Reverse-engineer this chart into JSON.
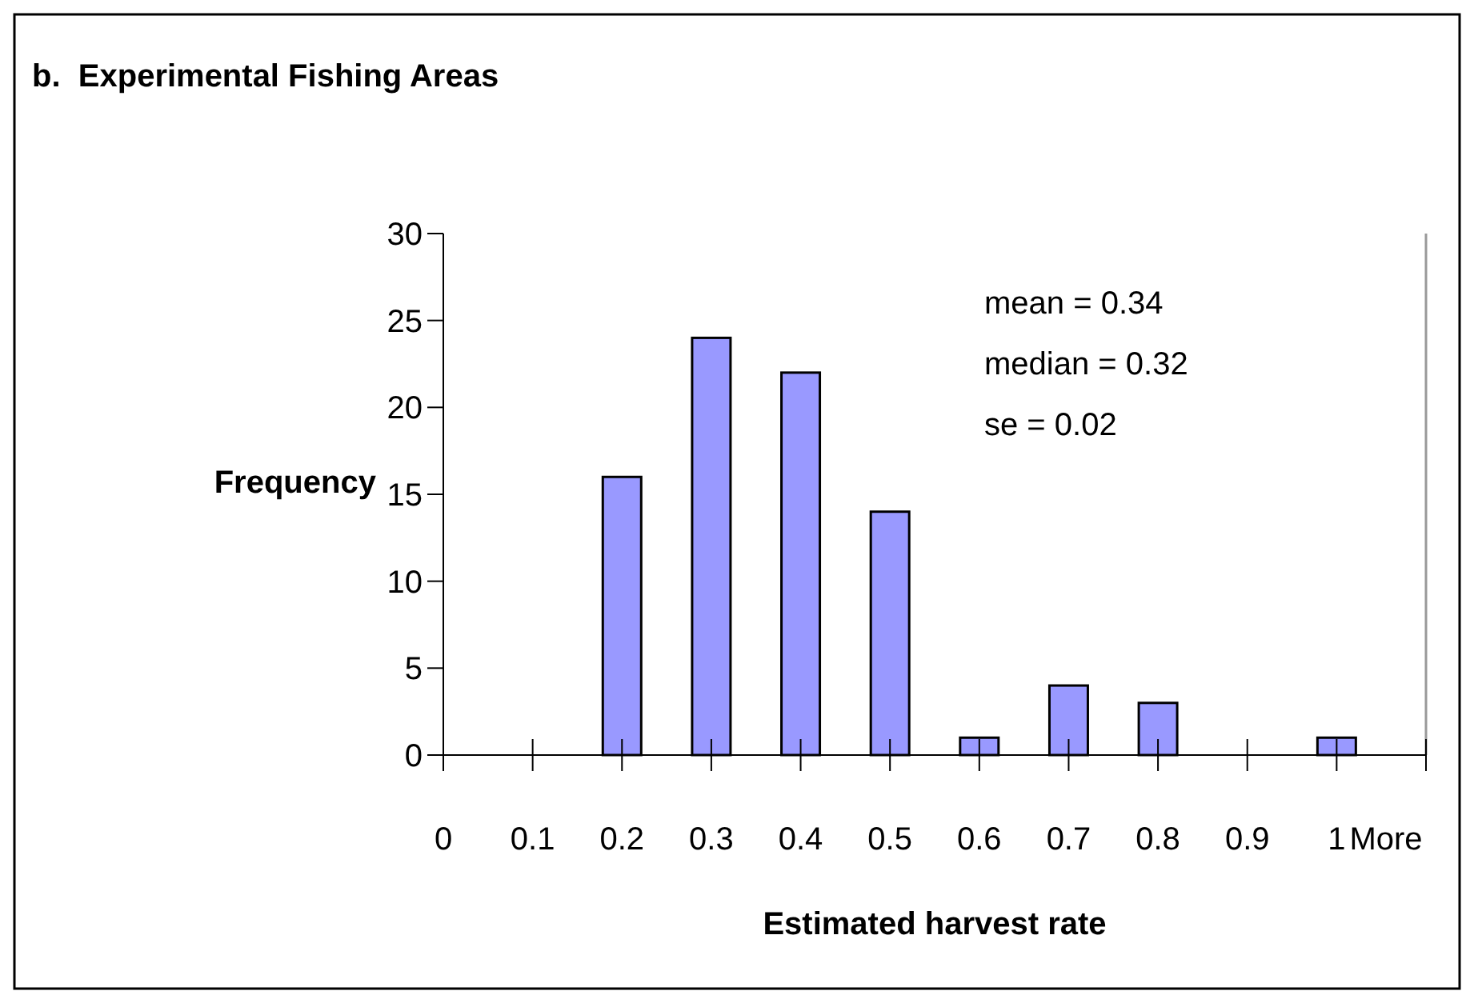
{
  "chart_data": {
    "type": "bar",
    "title": "b.  Experimental Fishing Areas",
    "xlabel": "Estimated harvest rate",
    "ylabel": "Frequency",
    "categories": [
      "0",
      "0.1",
      "0.2",
      "0.3",
      "0.4",
      "0.5",
      "0.6",
      "0.7",
      "0.8",
      "0.9",
      "1",
      "More"
    ],
    "values": [
      0,
      0,
      16,
      24,
      22,
      14,
      1,
      4,
      3,
      0,
      1,
      0
    ],
    "color": "#9999ff",
    "ylim": [
      0,
      30
    ],
    "yticks": [
      0,
      5,
      10,
      15,
      20,
      25,
      30
    ],
    "grid": false,
    "annotations": [
      "mean = 0.34",
      "median = 0.32",
      "se = 0.02"
    ]
  }
}
